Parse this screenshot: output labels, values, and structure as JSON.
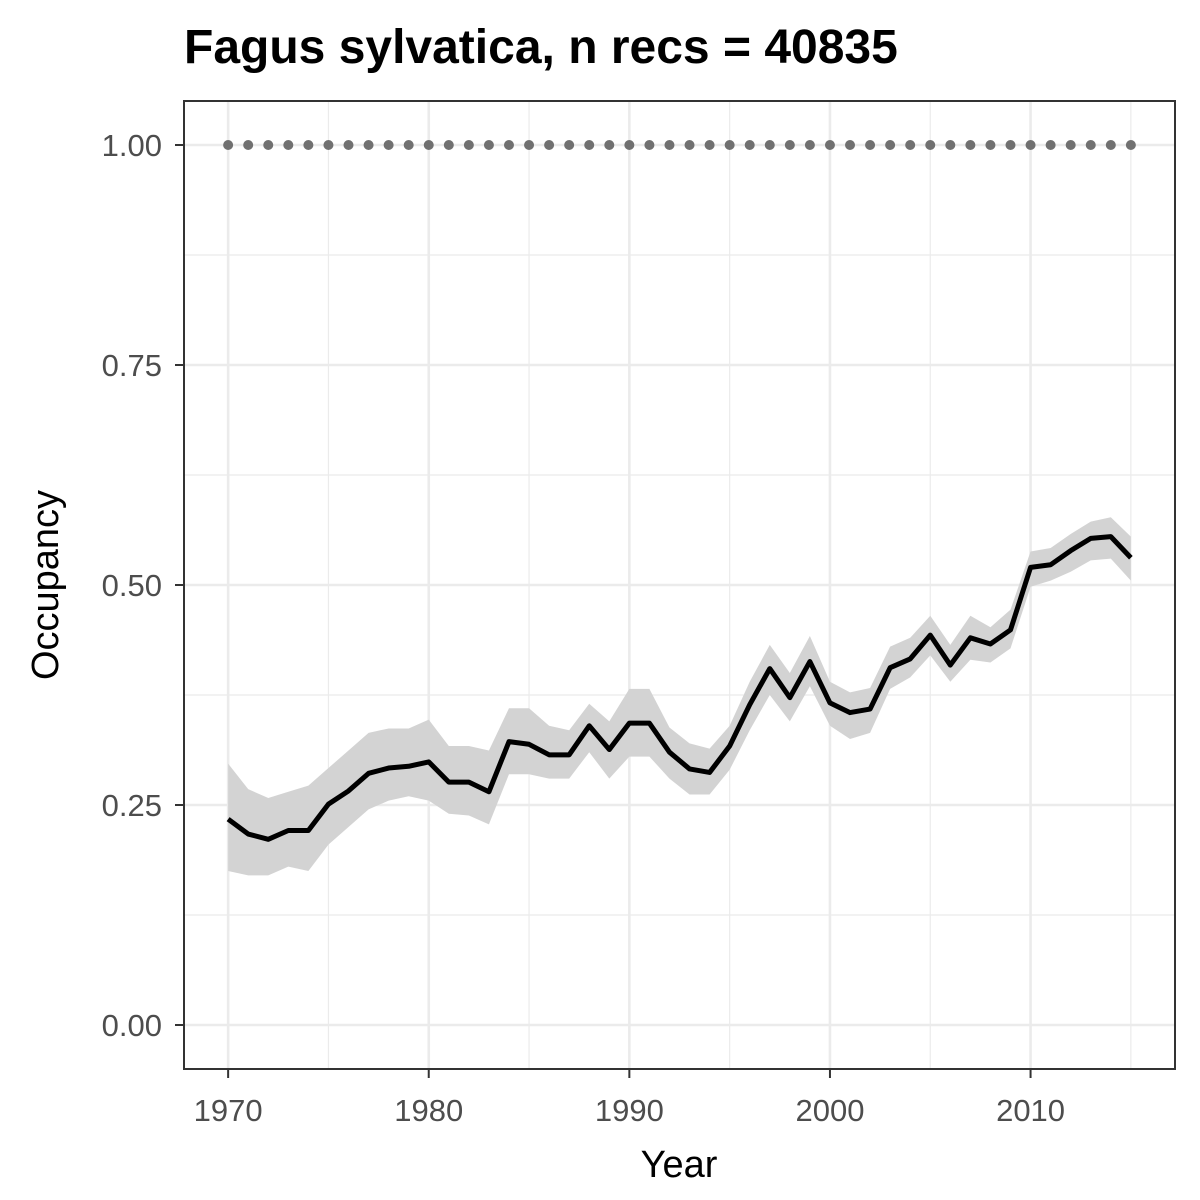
{
  "chart_data": {
    "type": "line",
    "title": "Fagus sylvatica, n recs = 40835",
    "xlabel": "Year",
    "ylabel": "Occupancy",
    "xlim": [
      1967.8,
      2017.2
    ],
    "ylim": [
      -0.05,
      1.05
    ],
    "x_ticks": [
      1970,
      1980,
      1990,
      2000,
      2010
    ],
    "x_tick_labels": [
      "1970",
      "1980",
      "1990",
      "2000",
      "2010"
    ],
    "x_minor_ticks": [
      1975,
      1985,
      1995,
      2005,
      2015
    ],
    "y_ticks": [
      0,
      0.25,
      0.5,
      0.75,
      1.0
    ],
    "y_tick_labels": [
      "0.00",
      "0.25",
      "0.50",
      "0.75",
      "1.00"
    ],
    "y_minor_ticks": [
      0.125,
      0.375,
      0.625,
      0.875
    ],
    "grid": true,
    "colors": {
      "line": "#000000",
      "ribbon": "#d3d3d3",
      "dots": "#707070",
      "grid": "#ebebeb",
      "panel_border": "#333333"
    },
    "series": [
      {
        "type": "ribbon",
        "x": [
          1970,
          1971,
          1972,
          1973,
          1974,
          1975,
          1976,
          1977,
          1978,
          1979,
          1980,
          1981,
          1982,
          1983,
          1984,
          1985,
          1986,
          1987,
          1988,
          1989,
          1990,
          1991,
          1992,
          1993,
          1994,
          1995,
          1996,
          1997,
          1998,
          1999,
          2000,
          2001,
          2002,
          2003,
          2004,
          2005,
          2006,
          2007,
          2008,
          2009,
          2010,
          2011,
          2012,
          2013,
          2014,
          2015
        ],
        "lower": [
          0.175,
          0.17,
          0.17,
          0.18,
          0.175,
          0.205,
          0.225,
          0.245,
          0.255,
          0.26,
          0.255,
          0.24,
          0.238,
          0.228,
          0.285,
          0.285,
          0.28,
          0.28,
          0.31,
          0.28,
          0.305,
          0.305,
          0.28,
          0.262,
          0.262,
          0.29,
          0.335,
          0.375,
          0.345,
          0.385,
          0.34,
          0.325,
          0.332,
          0.382,
          0.395,
          0.42,
          0.39,
          0.415,
          0.412,
          0.428,
          0.498,
          0.505,
          0.515,
          0.528,
          0.53,
          0.505
        ],
        "upper": [
          0.297,
          0.268,
          0.258,
          0.265,
          0.272,
          0.292,
          0.312,
          0.332,
          0.337,
          0.337,
          0.347,
          0.317,
          0.317,
          0.312,
          0.36,
          0.36,
          0.34,
          0.335,
          0.365,
          0.345,
          0.382,
          0.382,
          0.338,
          0.32,
          0.314,
          0.34,
          0.39,
          0.432,
          0.4,
          0.442,
          0.39,
          0.378,
          0.383,
          0.43,
          0.44,
          0.465,
          0.432,
          0.465,
          0.452,
          0.472,
          0.538,
          0.542,
          0.558,
          0.572,
          0.577,
          0.555
        ]
      },
      {
        "type": "line",
        "x": [
          1970,
          1971,
          1972,
          1973,
          1974,
          1975,
          1976,
          1977,
          1978,
          1979,
          1980,
          1981,
          1982,
          1983,
          1984,
          1985,
          1986,
          1987,
          1988,
          1989,
          1990,
          1991,
          1992,
          1993,
          1994,
          1995,
          1996,
          1997,
          1998,
          1999,
          2000,
          2001,
          2002,
          2003,
          2004,
          2005,
          2006,
          2007,
          2008,
          2009,
          2010,
          2011,
          2012,
          2013,
          2014,
          2015
        ],
        "y": [
          0.234,
          0.217,
          0.211,
          0.221,
          0.221,
          0.251,
          0.266,
          0.286,
          0.292,
          0.294,
          0.299,
          0.276,
          0.276,
          0.265,
          0.322,
          0.319,
          0.307,
          0.307,
          0.34,
          0.313,
          0.343,
          0.343,
          0.31,
          0.291,
          0.287,
          0.317,
          0.364,
          0.405,
          0.372,
          0.413,
          0.366,
          0.355,
          0.359,
          0.406,
          0.416,
          0.443,
          0.409,
          0.44,
          0.433,
          0.449,
          0.52,
          0.523,
          0.539,
          0.553,
          0.555,
          0.531
        ]
      },
      {
        "type": "points",
        "x": [
          1970,
          1971,
          1972,
          1973,
          1974,
          1975,
          1976,
          1977,
          1978,
          1979,
          1980,
          1981,
          1982,
          1983,
          1984,
          1985,
          1986,
          1987,
          1988,
          1989,
          1990,
          1991,
          1992,
          1993,
          1994,
          1995,
          1996,
          1997,
          1998,
          1999,
          2000,
          2001,
          2002,
          2003,
          2004,
          2005,
          2006,
          2007,
          2008,
          2009,
          2010,
          2011,
          2012,
          2013,
          2014,
          2015
        ],
        "y": [
          1,
          1,
          1,
          1,
          1,
          1,
          1,
          1,
          1,
          1,
          1,
          1,
          1,
          1,
          1,
          1,
          1,
          1,
          1,
          1,
          1,
          1,
          1,
          1,
          1,
          1,
          1,
          1,
          1,
          1,
          1,
          1,
          1,
          1,
          1,
          1,
          1,
          1,
          1,
          1,
          1,
          1,
          1,
          1,
          1,
          1
        ]
      }
    ]
  }
}
